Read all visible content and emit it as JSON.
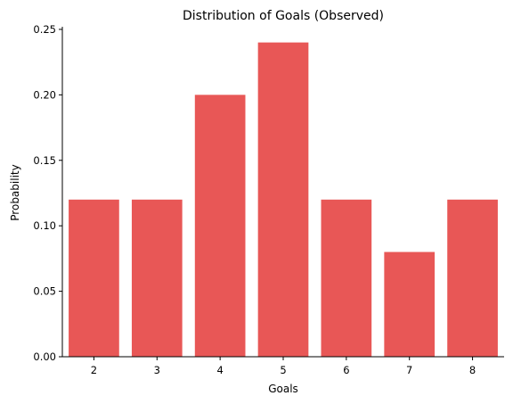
{
  "chart_data": {
    "type": "bar",
    "title": "Distribution of Goals (Observed)",
    "xlabel": "Goals",
    "ylabel": "Probability",
    "categories": [
      "2",
      "3",
      "4",
      "5",
      "6",
      "7",
      "8"
    ],
    "values": [
      0.12,
      0.12,
      0.2,
      0.24,
      0.12,
      0.08,
      0.12
    ],
    "ylim": [
      0,
      0.252
    ],
    "yticks": [
      "0.00",
      "0.05",
      "0.10",
      "0.15",
      "0.20",
      "0.25"
    ],
    "grid": false,
    "bar_color": "#e85756"
  }
}
